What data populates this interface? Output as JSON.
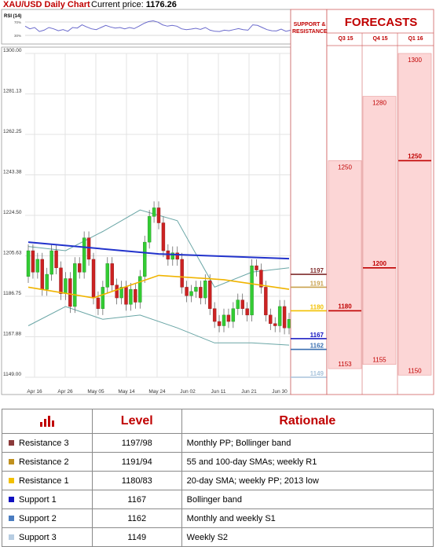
{
  "header": {
    "title": "XAU/USD Daily Chart",
    "price_label": "Current price:",
    "price_value": "1176.26"
  },
  "rsi": {
    "label": "RSI (14)",
    "ticks": [
      "70%",
      "30%"
    ]
  },
  "columns": {
    "sr_header": "SUPPORT & RESISTANCE",
    "forecast_title": "FORECASTS",
    "quarters": [
      "Q3 15",
      "Q4 15",
      "Q1 16"
    ]
  },
  "chart_data": {
    "type": "candlestick",
    "y_ticks": [
      "1300.00",
      "1281.13",
      "1262.25",
      "1243.38",
      "1224.50",
      "1205.63",
      "1186.75",
      "1167.88",
      "1149.00"
    ],
    "ylim": [
      1149,
      1300
    ],
    "x_ticks": [
      "Apr 16",
      "Apr 26",
      "May 05",
      "May 14",
      "May 24",
      "Jun 02",
      "Jun 11",
      "Jun 21",
      "Jun 30"
    ],
    "candles": [
      [
        1196,
        1208
      ],
      [
        1208,
        1198
      ],
      [
        1198,
        1204
      ],
      [
        1204,
        1190
      ],
      [
        1190,
        1197
      ],
      [
        1197,
        1208
      ],
      [
        1208,
        1200
      ],
      [
        1200,
        1188
      ],
      [
        1188,
        1195
      ],
      [
        1195,
        1182
      ],
      [
        1182,
        1202
      ],
      [
        1202,
        1198
      ],
      [
        1198,
        1214
      ],
      [
        1214,
        1204
      ],
      [
        1204,
        1186
      ],
      [
        1186,
        1181
      ],
      [
        1181,
        1191
      ],
      [
        1191,
        1202
      ],
      [
        1202,
        1192
      ],
      [
        1192,
        1186
      ],
      [
        1186,
        1191
      ],
      [
        1191,
        1183
      ],
      [
        1183,
        1190
      ],
      [
        1190,
        1184
      ],
      [
        1184,
        1196
      ],
      [
        1196,
        1212
      ],
      [
        1212,
        1224
      ],
      [
        1224,
        1228
      ],
      [
        1228,
        1221
      ],
      [
        1221,
        1208
      ],
      [
        1208,
        1204
      ],
      [
        1204,
        1207
      ],
      [
        1207,
        1204
      ],
      [
        1204,
        1191
      ],
      [
        1191,
        1187
      ],
      [
        1187,
        1189
      ],
      [
        1189,
        1191
      ],
      [
        1191,
        1186
      ],
      [
        1186,
        1194
      ],
      [
        1194,
        1181
      ],
      [
        1181,
        1175
      ],
      [
        1175,
        1173
      ],
      [
        1173,
        1178
      ],
      [
        1178,
        1175
      ],
      [
        1175,
        1181
      ],
      [
        1181,
        1185
      ],
      [
        1185,
        1181
      ],
      [
        1181,
        1178
      ],
      [
        1178,
        1201
      ],
      [
        1201,
        1199
      ],
      [
        1199,
        1191
      ],
      [
        1191,
        1178
      ],
      [
        1178,
        1174
      ],
      [
        1174,
        1173
      ],
      [
        1173,
        1182
      ],
      [
        1182,
        1172
      ],
      [
        1172,
        1176
      ]
    ],
    "sma_blue": [
      1212,
      1206.5,
      1204.3
    ],
    "sma_orange": [
      1191,
      1186,
      1196.5,
      1194.5,
      1190
    ],
    "bollinger_upper": [
      1210,
      1208,
      1217,
      1227,
      1222,
      1191,
      1198,
      1200
    ],
    "bollinger_lower": [
      1173,
      1182,
      1176,
      1178,
      1172,
      1165,
      1165,
      1164
    ]
  },
  "sr_levels": [
    {
      "value": "1197",
      "color": "#7f2b2b"
    },
    {
      "value": "1191",
      "color": "#c9a14d"
    },
    {
      "value": "1180",
      "color": "#f2c000"
    },
    {
      "value": "1167",
      "color": "#1010c0"
    },
    {
      "value": "1162",
      "color": "#3a6fb0"
    },
    {
      "value": "1149",
      "color": "#a9c4dc"
    }
  ],
  "forecasts": [
    {
      "quarter": "Q3 15",
      "high": "1250",
      "mid": "1180",
      "low": "1153"
    },
    {
      "quarter": "Q4 15",
      "high": "1280",
      "mid": "1200",
      "low": "1155"
    },
    {
      "quarter": "Q1 16",
      "high": "1300",
      "mid": "1250",
      "low": "1150"
    }
  ],
  "table": {
    "headers": [
      "Level",
      "Rationale"
    ],
    "rows": [
      {
        "name": "Resistance 3",
        "level": "1197/98",
        "rationale": "Monthly PP; Bollinger band",
        "color": "#8b3a3a"
      },
      {
        "name": "Resistance 2",
        "level": "1191/94",
        "rationale": "55 and 100-day SMAs; weekly R1",
        "color": "#c0901e"
      },
      {
        "name": "Resistance 1",
        "level": "1180/83",
        "rationale": "20-day SMA; weekly PP; 2013 low",
        "color": "#f2c000"
      },
      {
        "name": "Support 1",
        "level": "1167",
        "rationale": "Bollinger band",
        "color": "#1010c0"
      },
      {
        "name": "Support 2",
        "level": "1162",
        "rationale": "Monthly and weekly S1",
        "color": "#4a7cc0"
      },
      {
        "name": "Support 3",
        "level": "1149",
        "rationale": "Weekly S2",
        "color": "#b7cde2"
      }
    ]
  }
}
